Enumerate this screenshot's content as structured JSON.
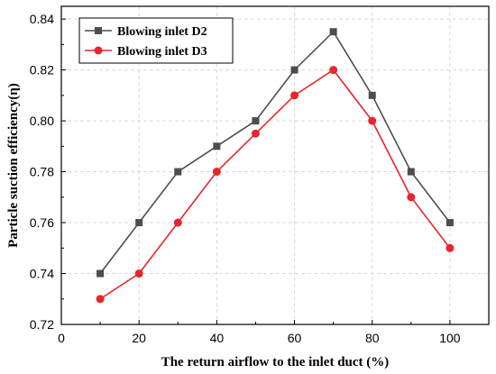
{
  "chart_data": {
    "type": "line",
    "title": "",
    "xlabel": "The return airflow to the inlet duct (%)",
    "ylabel": "Particle suction efficiency(η)",
    "xlim": [
      0,
      110
    ],
    "ylim": [
      0.72,
      0.845
    ],
    "xticks": [
      0,
      20,
      40,
      60,
      80,
      100
    ],
    "yticks": [
      0.72,
      0.74,
      0.76,
      0.78,
      0.8,
      0.82,
      0.84
    ],
    "ytick_labels": [
      "0.72",
      "0.74",
      "0.76",
      "0.78",
      "0.80",
      "0.82",
      "0.84"
    ],
    "grid": true,
    "legend_position": "top-left",
    "x": [
      10,
      20,
      30,
      40,
      50,
      60,
      70,
      80,
      90,
      100
    ],
    "series": [
      {
        "name": "Blowing inlet D2",
        "marker": "square",
        "color": "#4d4d4d",
        "values": [
          0.74,
          0.76,
          0.78,
          0.79,
          0.8,
          0.82,
          0.835,
          0.81,
          0.78,
          0.76
        ]
      },
      {
        "name": "Blowing inlet D3",
        "marker": "circle",
        "color": "#e8262d",
        "values": [
          0.73,
          0.74,
          0.76,
          0.78,
          0.795,
          0.81,
          0.82,
          0.8,
          0.77,
          0.75
        ]
      }
    ]
  }
}
